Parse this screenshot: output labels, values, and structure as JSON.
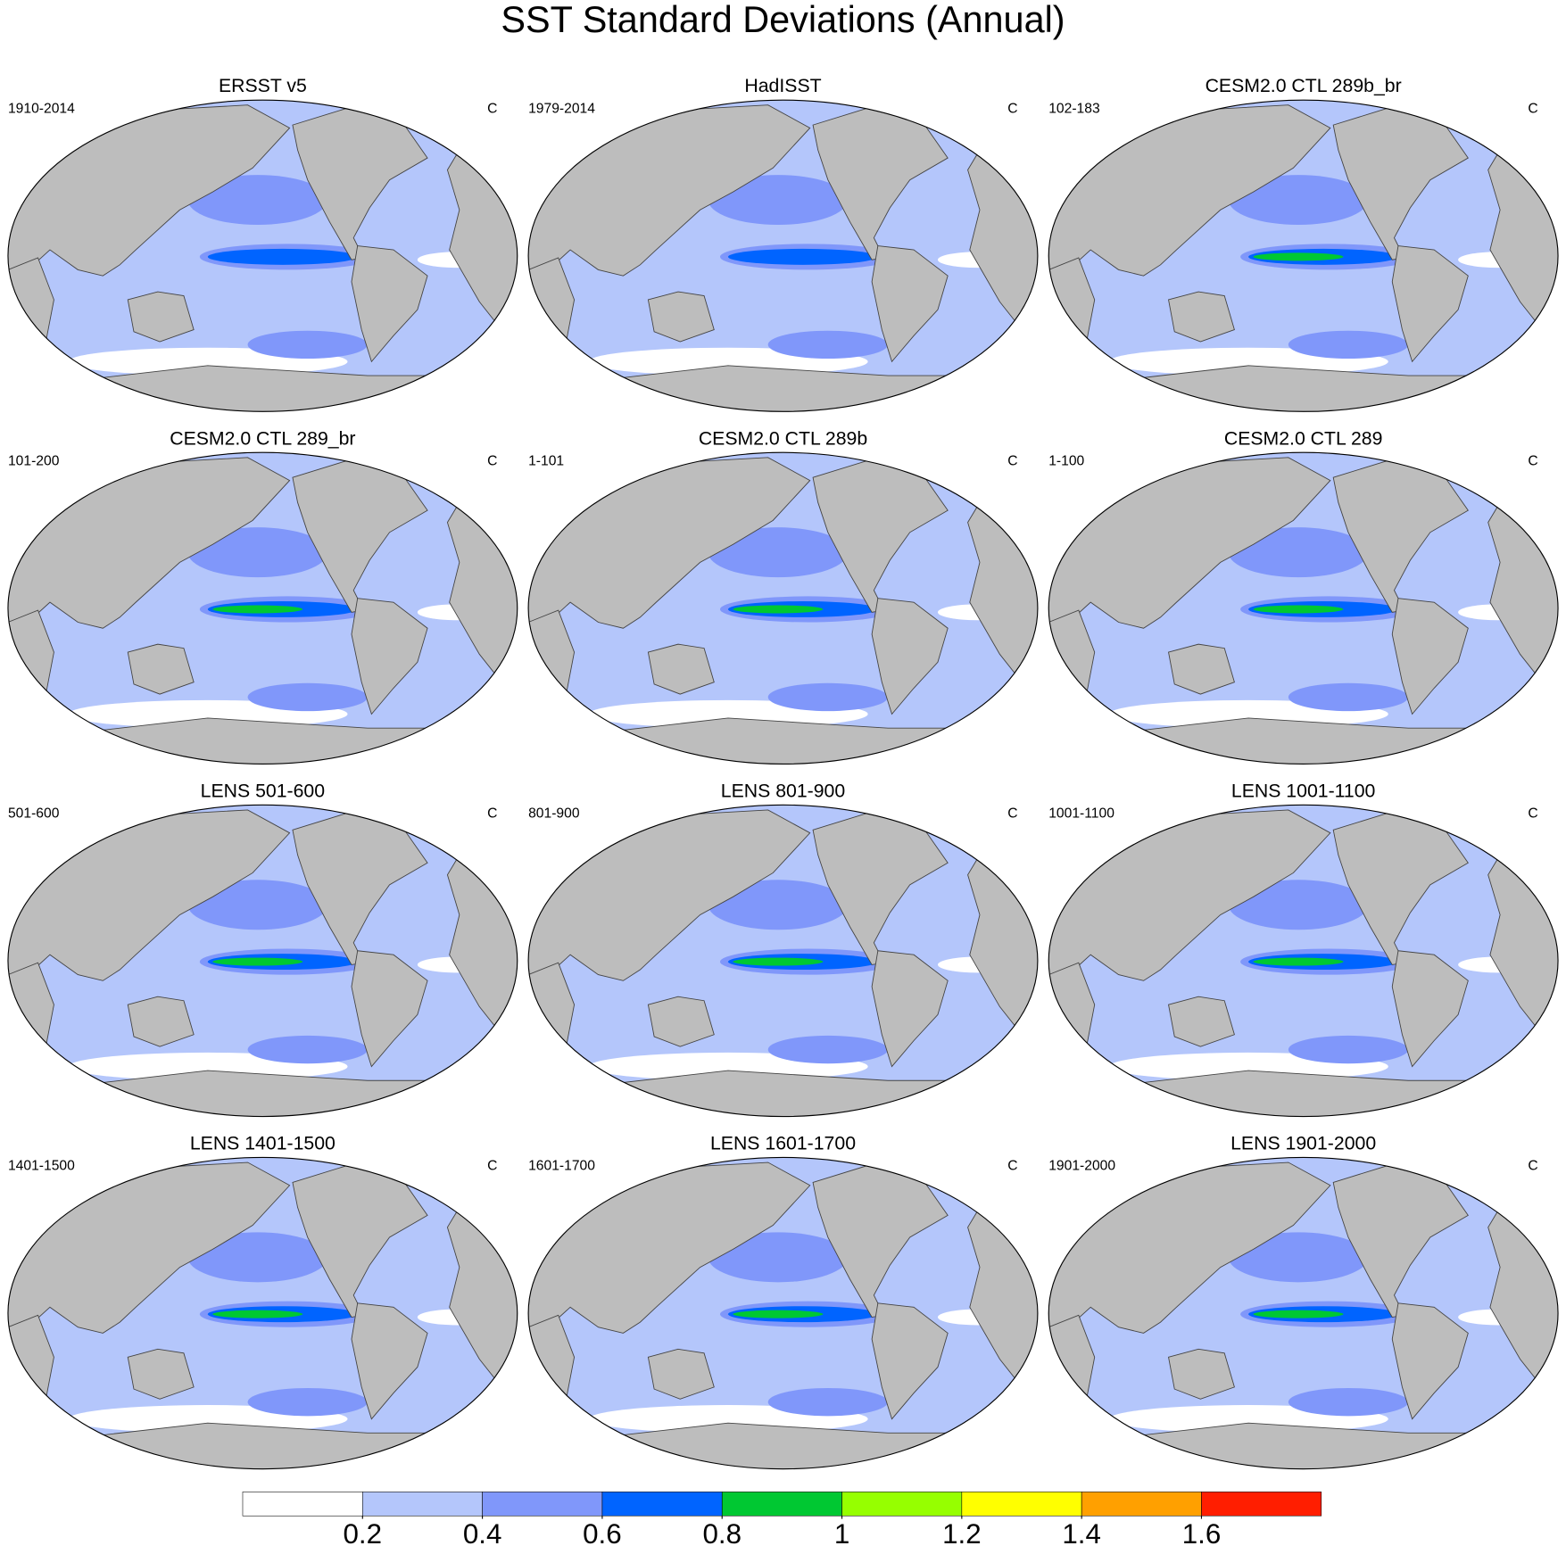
{
  "title": "SST Standard Deviations (Annual)",
  "panels": [
    {
      "title": "ERSST v5",
      "period": "1910-2014",
      "units": "C"
    },
    {
      "title": "HadISST",
      "period": "1979-2014",
      "units": "C"
    },
    {
      "title": "CESM2.0 CTL 289b_br",
      "period": "102-183",
      "units": "C"
    },
    {
      "title": "CESM2.0 CTL 289_br",
      "period": "101-200",
      "units": "C"
    },
    {
      "title": "CESM2.0 CTL 289b",
      "period": "1-101",
      "units": "C"
    },
    {
      "title": "CESM2.0 CTL 289",
      "period": "1-100",
      "units": "C"
    },
    {
      "title": "LENS 501-600",
      "period": "501-600",
      "units": "C"
    },
    {
      "title": "LENS 801-900",
      "period": "801-900",
      "units": "C"
    },
    {
      "title": "LENS 1001-1100",
      "period": "1001-1100",
      "units": "C"
    },
    {
      "title": "LENS 1401-1500",
      "period": "1401-1500",
      "units": "C"
    },
    {
      "title": "LENS 1601-1700",
      "period": "1601-1700",
      "units": "C"
    },
    {
      "title": "LENS 1901-2000",
      "period": "1901-2000",
      "units": "C"
    }
  ],
  "colorbar": {
    "colors": [
      "#ffffff",
      "#b4c6fb",
      "#8097fa",
      "#0064ff",
      "#00c832",
      "#96ff00",
      "#ffff00",
      "#ffa000",
      "#ff1e00"
    ],
    "ticks": [
      0.2,
      0.4,
      0.6,
      0.8,
      1,
      1.2,
      1.4,
      1.6
    ]
  }
}
